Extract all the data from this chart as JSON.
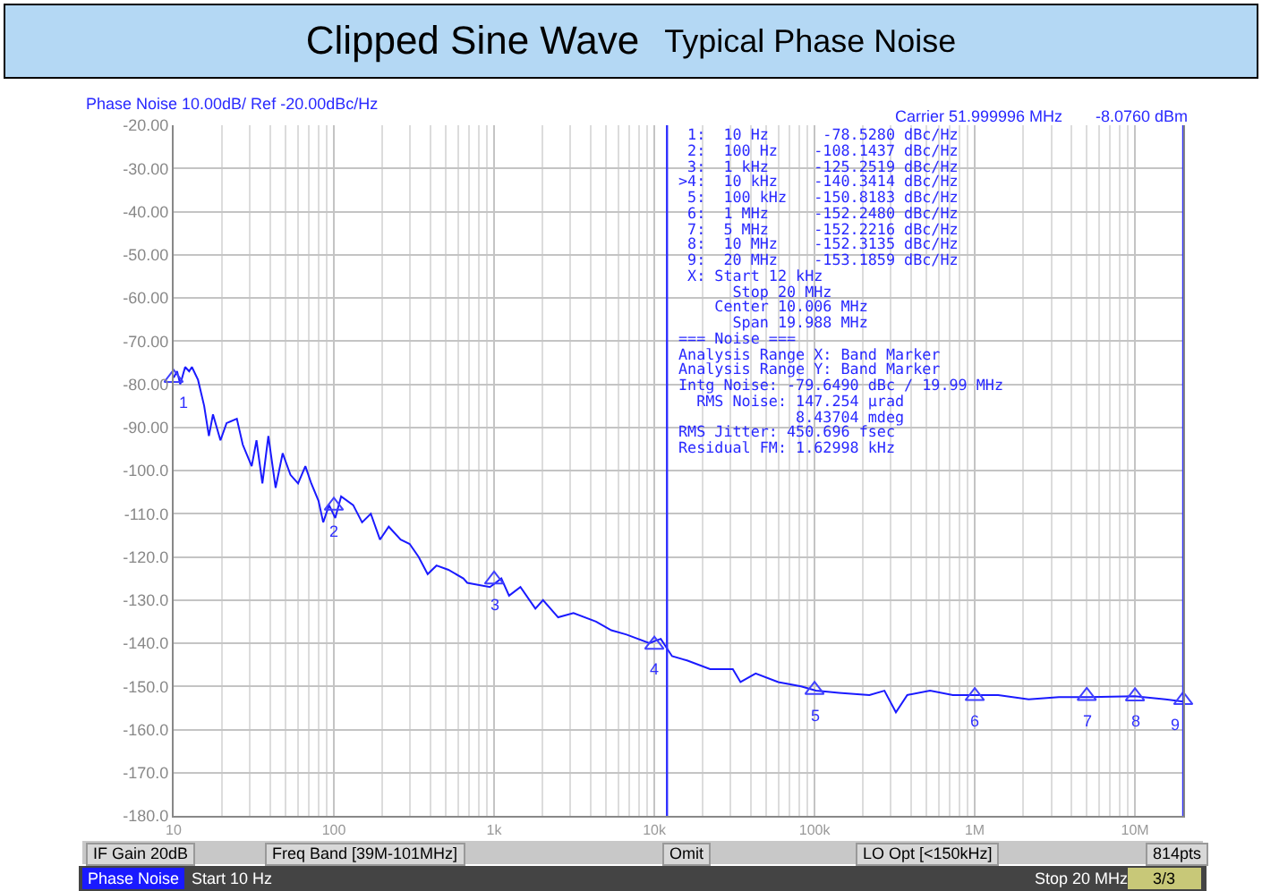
{
  "chart_data": {
    "type": "line",
    "title": "Clipped Sine Wave",
    "subtitle": "Typical Phase Noise",
    "xlim": [
      10,
      20000000
    ],
    "ylim": [
      -180,
      -20
    ],
    "log": "x",
    "xticks": [
      10,
      100,
      {
        "value": 1000,
        "label": "1k"
      },
      {
        "value": 10000,
        "label": "10k"
      },
      {
        "value": 100000,
        "label": "100k"
      },
      {
        "value": 1000000,
        "label": "1M"
      },
      {
        "value": 10000000,
        "label": "10M"
      }
    ],
    "yticks": [
      {
        "value": -20,
        "label": "-20.00"
      },
      {
        "value": -30,
        "label": "-30.00"
      },
      {
        "value": -40,
        "label": "-40.00"
      },
      {
        "value": -50,
        "label": "-50.00"
      },
      {
        "value": -60,
        "label": "-60.00"
      },
      {
        "value": -70,
        "label": "-70.00"
      },
      {
        "value": -80,
        "label": "-80.00"
      },
      {
        "value": -90,
        "label": "-90.00"
      },
      {
        "value": -100,
        "label": "-100.0"
      },
      {
        "value": -110,
        "label": "-110.0"
      },
      {
        "value": -120,
        "label": "-120.0"
      },
      {
        "value": -130,
        "label": "-130.0"
      },
      {
        "value": -140,
        "label": "-140.0"
      },
      {
        "value": -150,
        "label": "-150.0"
      },
      {
        "value": -160,
        "label": "-160.0"
      },
      {
        "value": -170,
        "label": "-170.0"
      },
      {
        "value": -180,
        "label": "-180.0"
      }
    ],
    "grid": true,
    "series": [
      {
        "color": "#1a1aff",
        "x": [
          10,
          10.5,
          11,
          11.8,
          12.5,
          13,
          14.2,
          15.5,
          16.6,
          17.6,
          19.6,
          21.4,
          24.8,
          27,
          30.7,
          32.9,
          35.8,
          39,
          43.3,
          47.9,
          53.6,
          59.8,
          66.4,
          72.3,
          80.2,
          85.8,
          93.4,
          102,
          111,
          132,
          150,
          170,
          194,
          220,
          261,
          297,
          338,
          385,
          437,
          519,
          643,
          680,
          942,
          1110,
          1240,
          1460,
          1810,
          2020,
          2510,
          3130,
          4330,
          5390,
          6710,
          9310,
          10970,
          12900,
          16000,
          22300,
          30900,
          34500,
          42900,
          59400,
          82400,
          102000,
          142000,
          220000,
          273000,
          322000,
          379000,
          526000,
          730000,
          1010000,
          1400000,
          2170000,
          3350000,
          5190000,
          10000000,
          15500000,
          20000000
        ],
        "values": [
          -78.5,
          -77,
          -80,
          -76,
          -77,
          -76,
          -79,
          -85,
          -92,
          -87,
          -93,
          -89,
          -88,
          -94,
          -99,
          -93,
          -103,
          -92,
          -104,
          -96,
          -101,
          -103,
          -99,
          -103,
          -107,
          -112,
          -108,
          -111,
          -106,
          -108,
          -112,
          -110,
          -116,
          -113,
          -116,
          -117,
          -120,
          -124,
          -122,
          -123,
          -125,
          -126,
          -127,
          -125,
          -129,
          -127,
          -132,
          -130,
          -134,
          -133,
          -135,
          -137,
          -138,
          -140,
          -139,
          -143,
          -144,
          -146,
          -146,
          -149,
          -147,
          -149,
          -150,
          -151,
          -151.5,
          -152,
          -151,
          -156,
          -152,
          -151,
          -152,
          -152,
          -152,
          -153,
          -152.5,
          -152.5,
          -152.3,
          -153,
          -153.5
        ]
      },
      {
        "type": "scatter",
        "color": "#4040ff",
        "marker": "triangle",
        "x": [
          10,
          100,
          1000,
          10000,
          100000,
          1000000,
          5000000,
          10000000,
          20000000
        ],
        "values": [
          -78.528,
          -108.1437,
          -125.2519,
          -140.3414,
          -150.8183,
          -152.248,
          -152.2216,
          -152.3135,
          -153.1859
        ]
      }
    ],
    "ref_lines": [
      {
        "axis": "x",
        "value": 12000,
        "color": "#3030ff"
      },
      {
        "axis": "x",
        "value": 20000000,
        "color": "#3030ff"
      }
    ],
    "annotations": [
      "Phase Noise 10.00dB/ Ref -20.00dBc/Hz",
      "Carrier 51.999996 MHz",
      "-8.0760 dBm",
      " 1:  10 Hz      -78.5280 dBc/Hz",
      " 2:  100 Hz    -108.1437 dBc/Hz",
      " 3:  1 kHz     -125.2519 dBc/Hz",
      ">4:  10 kHz    -140.3414 dBc/Hz",
      " 5:  100 kHz   -150.8183 dBc/Hz",
      " 6:  1 MHz     -152.2480 dBc/Hz",
      " 7:  5 MHz     -152.2216 dBc/Hz",
      " 8:  10 MHz    -152.3135 dBc/Hz",
      " 9:  20 MHz    -153.1859 dBc/Hz",
      " X: Start 12 kHz",
      "      Stop 20 MHz",
      "    Center 10.006 MHz",
      "      Span 19.988 MHz",
      "=== Noise ===",
      "Analysis Range X: Band Marker",
      "Analysis Range Y: Band Marker",
      "Intg Noise: -79.6490 dBc / 19.99 MHz",
      "  RMS Noise: 147.254 µrad",
      "             8.43704 mdeg",
      "RMS Jitter: 450.696 fsec",
      "Residual FM: 1.62998 kHz",
      "IF Gain 20dB",
      "Freq Band [39M-101MHz]",
      "Omit",
      "LO Opt [<150kHz]",
      "814pts",
      "Phase Noise",
      "Start 10 Hz",
      "Stop 20 MHz",
      "3/3",
      {
        "text": "1",
        "x": 10,
        "y": -78.528
      },
      {
        "text": "2",
        "x": 100,
        "y": -108.1437
      },
      {
        "text": "3",
        "x": 1000,
        "y": -125.2519
      },
      {
        "text": "4",
        "x": 10000,
        "y": -140.3414
      },
      {
        "text": "5",
        "x": 100000,
        "y": -150.8183
      },
      {
        "text": "6",
        "x": 1000000,
        "y": -152.248
      },
      {
        "text": "7",
        "x": 5000000,
        "y": -152.2216
      },
      {
        "text": "8",
        "x": 10000000,
        "y": -152.3135
      },
      {
        "text": "9",
        "x": 20000000,
        "y": -153.1859
      }
    ]
  }
}
